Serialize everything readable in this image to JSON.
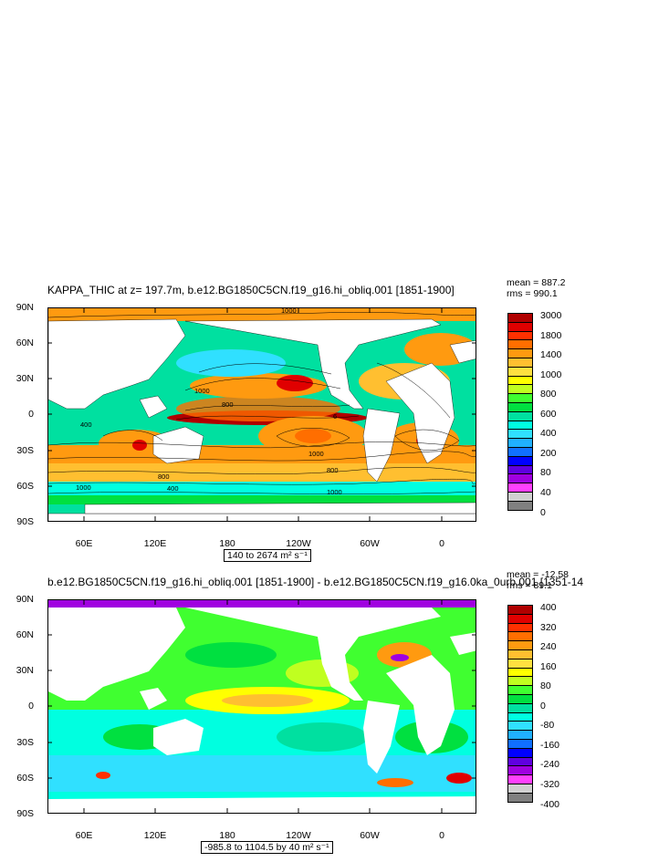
{
  "panels": [
    {
      "id": "top",
      "title": "KAPPA_THIC at z= 197.7m, b.e12.BG1850C5CN.f19_g16.hi_obliq.001 [1851-1900]",
      "stats": {
        "mean": "mean = 887.2",
        "rms": "rms = 990.1"
      },
      "range_label": "140 to 2674 m² s⁻¹",
      "colorbar": {
        "labels": [
          "3000",
          "1800",
          "1400",
          "1000",
          "800",
          "600",
          "400",
          "200",
          "80",
          "40",
          "0"
        ],
        "colors": [
          "#b00000",
          "#e00000",
          "#ff3000",
          "#ff6e00",
          "#ff9a10",
          "#ffbf30",
          "#ffe040",
          "#ffff00",
          "#c0ff20",
          "#40ff30",
          "#00e040",
          "#00e0a0",
          "#00ffe0",
          "#30e0ff",
          "#20b0ff",
          "#1070ff",
          "#0000ff",
          "#6000e0",
          "#a000e0",
          "#ff40ff",
          "#d0d0d0",
          "#808080"
        ]
      }
    },
    {
      "id": "bottom",
      "title": "b.e12.BG1850C5CN.f19_g16.hi_obliq.001 [1851-1900] - b.e12.BG1850C5CN.f19_g16.0ka_0urb.001 [1351-14",
      "stats": {
        "mean": "mean = -12.58",
        "rms": "rms = 89.1"
      },
      "range_label": "-985.8 to 1104.5 by 40 m² s⁻¹",
      "colorbar": {
        "labels": [
          "400",
          "320",
          "240",
          "160",
          "80",
          "0",
          "-80",
          "-160",
          "-240",
          "-320",
          "-400"
        ],
        "colors": [
          "#b00000",
          "#e00000",
          "#ff3000",
          "#ff6e00",
          "#ff9a10",
          "#ffbf30",
          "#ffe040",
          "#ffff00",
          "#c0ff20",
          "#40ff30",
          "#00e040",
          "#00e0a0",
          "#00ffe0",
          "#30e0ff",
          "#20b0ff",
          "#1070ff",
          "#0000ff",
          "#6000e0",
          "#a000e0",
          "#ff40ff",
          "#d0d0d0",
          "#808080"
        ]
      }
    }
  ],
  "axes": {
    "lat_labels": [
      "90N",
      "60N",
      "30N",
      "0",
      "30S",
      "60S",
      "90S"
    ],
    "lon_labels": [
      "60E",
      "120E",
      "180",
      "120W",
      "60W",
      "0"
    ]
  },
  "map_colors": {
    "land": "#ffffff",
    "ocean_top_base": "#00ffe0",
    "ocean_bot_base": "#40ff30"
  }
}
